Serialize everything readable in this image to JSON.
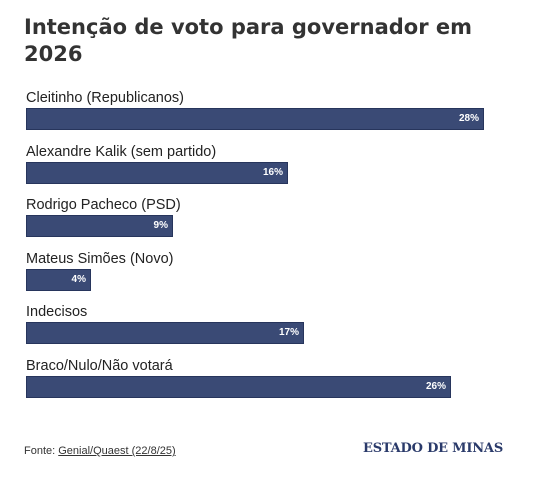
{
  "title": "Intenção de voto para governador em 2026",
  "chart_data": {
    "type": "bar",
    "orientation": "horizontal",
    "title": "Intenção de voto para governador em 2026",
    "categories": [
      "Cleitinho (Republicanos)",
      "Alexandre Kalik (sem partido)",
      "Rodrigo Pacheco (PSD)",
      "Mateus Simões (Novo)",
      "Indecisos",
      "Braco/Nulo/Não votará"
    ],
    "values": [
      28,
      16,
      9,
      4,
      17,
      26
    ],
    "value_labels": [
      "28%",
      "16%",
      "9%",
      "4%",
      "17%",
      "26%"
    ],
    "unit": "%",
    "bar_color": "#3a4a75",
    "xlim": [
      0,
      28
    ],
    "grid": false,
    "legend": "none"
  },
  "footer": {
    "source_prefix": "Fonte: ",
    "source_link": "Genial/Quaest (22/8/25)"
  },
  "brand": "ESTADO DE MINAS"
}
